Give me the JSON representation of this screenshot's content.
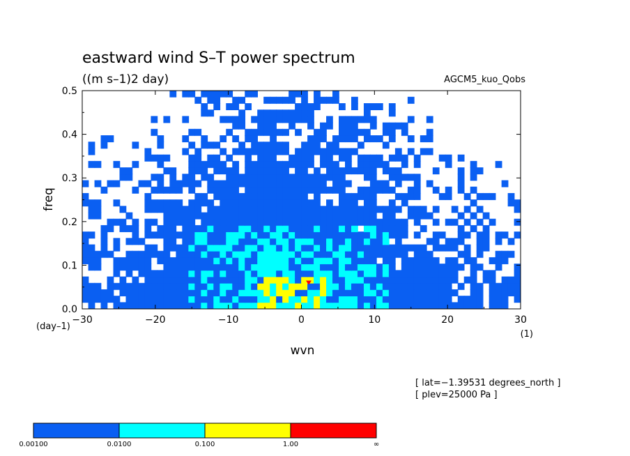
{
  "chart_data": {
    "type": "heatmap",
    "title": "eastward wind S–T power spectrum",
    "subtitle": "((m s–1)2 day)",
    "dataset_label": "AGCM5_kuo_Qobs",
    "xlabel": "wvn",
    "ylabel": "freq",
    "x_unit": "(1)",
    "y_unit": "(day–1)",
    "xlim": [
      -30,
      30
    ],
    "ylim": [
      0,
      0.5
    ],
    "x_ticks": [
      -30,
      -20,
      -10,
      0,
      10,
      20,
      30
    ],
    "y_ticks": [
      0.0,
      0.1,
      0.2,
      0.3,
      0.4,
      0.5
    ],
    "x_tick_labels": [
      "−30",
      "−20",
      "−10",
      "0",
      "10",
      "20",
      "30"
    ],
    "y_tick_labels": [
      "0.0",
      "0.1",
      "0.2",
      "0.3",
      "0.4",
      "0.5"
    ],
    "annotations": [
      "[ lat=−1.39531 degrees_north ]",
      "[ plev=25000 Pa ]"
    ],
    "contour_levels": [
      0.001,
      0.01,
      0.1,
      1.0
    ],
    "colorbar": {
      "labels": [
        "0.00100",
        "0.0100",
        "0.100",
        "1.00",
        "∞"
      ],
      "colors": [
        "#0a5ff2",
        "#00ffff",
        "#ffff00",
        "#ff0000"
      ]
    },
    "regions": [
      {
        "level": "0.001-0.01",
        "color": "#0a5ff2",
        "x_range": [
          -30,
          30
        ],
        "y_range": [
          0,
          0.5
        ],
        "note": "noisy broad coverage, sparser at high |wvn| and high freq"
      },
      {
        "level": "0.01-0.1",
        "color": "#00ffff",
        "x_range": [
          -15,
          12
        ],
        "y_range": [
          0,
          0.19
        ],
        "center": [
          -2,
          0.07
        ]
      },
      {
        "level": "0.1-1",
        "color": "#ffff00",
        "x_range": [
          -6,
          3
        ],
        "y_range": [
          0,
          0.08
        ],
        "center": [
          -2,
          0.03
        ]
      },
      {
        "level": "≥ 1",
        "color": "#ff0000",
        "x": 1,
        "y": 0.06
      }
    ]
  }
}
